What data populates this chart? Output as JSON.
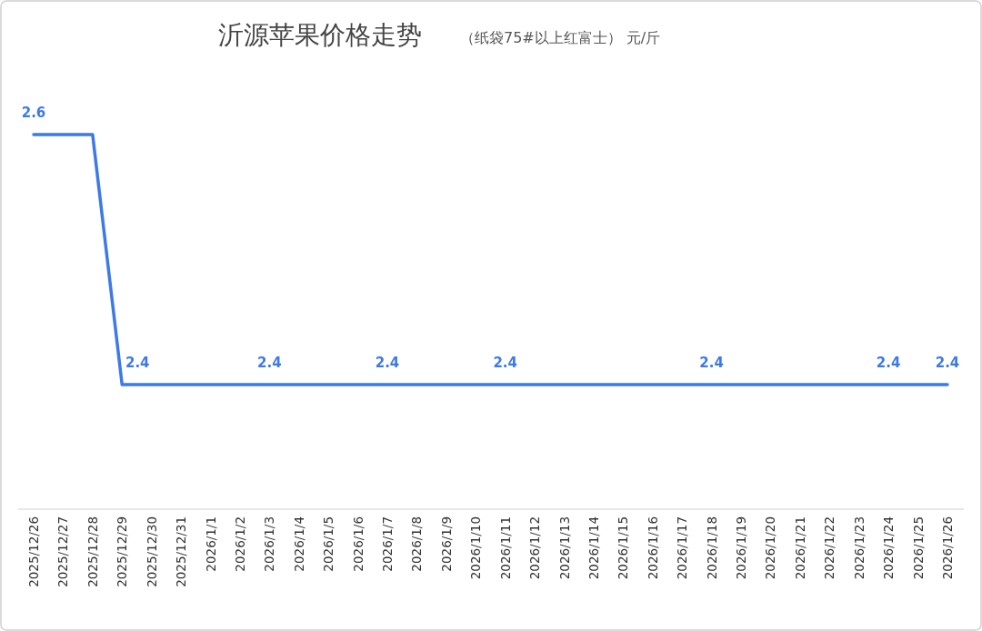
{
  "chart_data": {
    "type": "line",
    "title": "沂源苹果价格走势",
    "subtitle": "（纸袋75#以上红富士） 元/斤",
    "categories": [
      "2025/12/26",
      "2025/12/27",
      "2025/12/28",
      "2025/12/29",
      "2025/12/30",
      "2025/12/31",
      "2026/1/1",
      "2026/1/2",
      "2026/1/3",
      "2026/1/4",
      "2026/1/5",
      "2026/1/6",
      "2026/1/7",
      "2026/1/8",
      "2026/1/9",
      "2026/1/10",
      "2026/1/11",
      "2026/1/12",
      "2026/1/13",
      "2026/1/14",
      "2026/1/15",
      "2026/1/16",
      "2026/1/17",
      "2026/1/18",
      "2026/1/19",
      "2026/1/20",
      "2026/1/21",
      "2026/1/22",
      "2026/1/23",
      "2026/1/24",
      "2026/1/25",
      "2026/1/26"
    ],
    "values": [
      2.6,
      2.6,
      2.6,
      2.4,
      2.4,
      2.4,
      2.4,
      2.4,
      2.4,
      2.4,
      2.4,
      2.4,
      2.4,
      2.4,
      2.4,
      2.4,
      2.4,
      2.4,
      2.4,
      2.4,
      2.4,
      2.4,
      2.4,
      2.4,
      2.4,
      2.4,
      2.4,
      2.4,
      2.4,
      2.4,
      2.4,
      2.4
    ],
    "value_labels": [
      "2.6",
      null,
      null,
      "2.4",
      null,
      null,
      null,
      null,
      "2.4",
      null,
      null,
      null,
      "2.4",
      null,
      null,
      null,
      "2.4",
      null,
      null,
      null,
      null,
      null,
      null,
      "2.4",
      null,
      null,
      null,
      null,
      null,
      "2.4",
      null,
      "2.4"
    ],
    "color": "#3d7ae8",
    "marker": "none",
    "line_style": "solid"
  }
}
